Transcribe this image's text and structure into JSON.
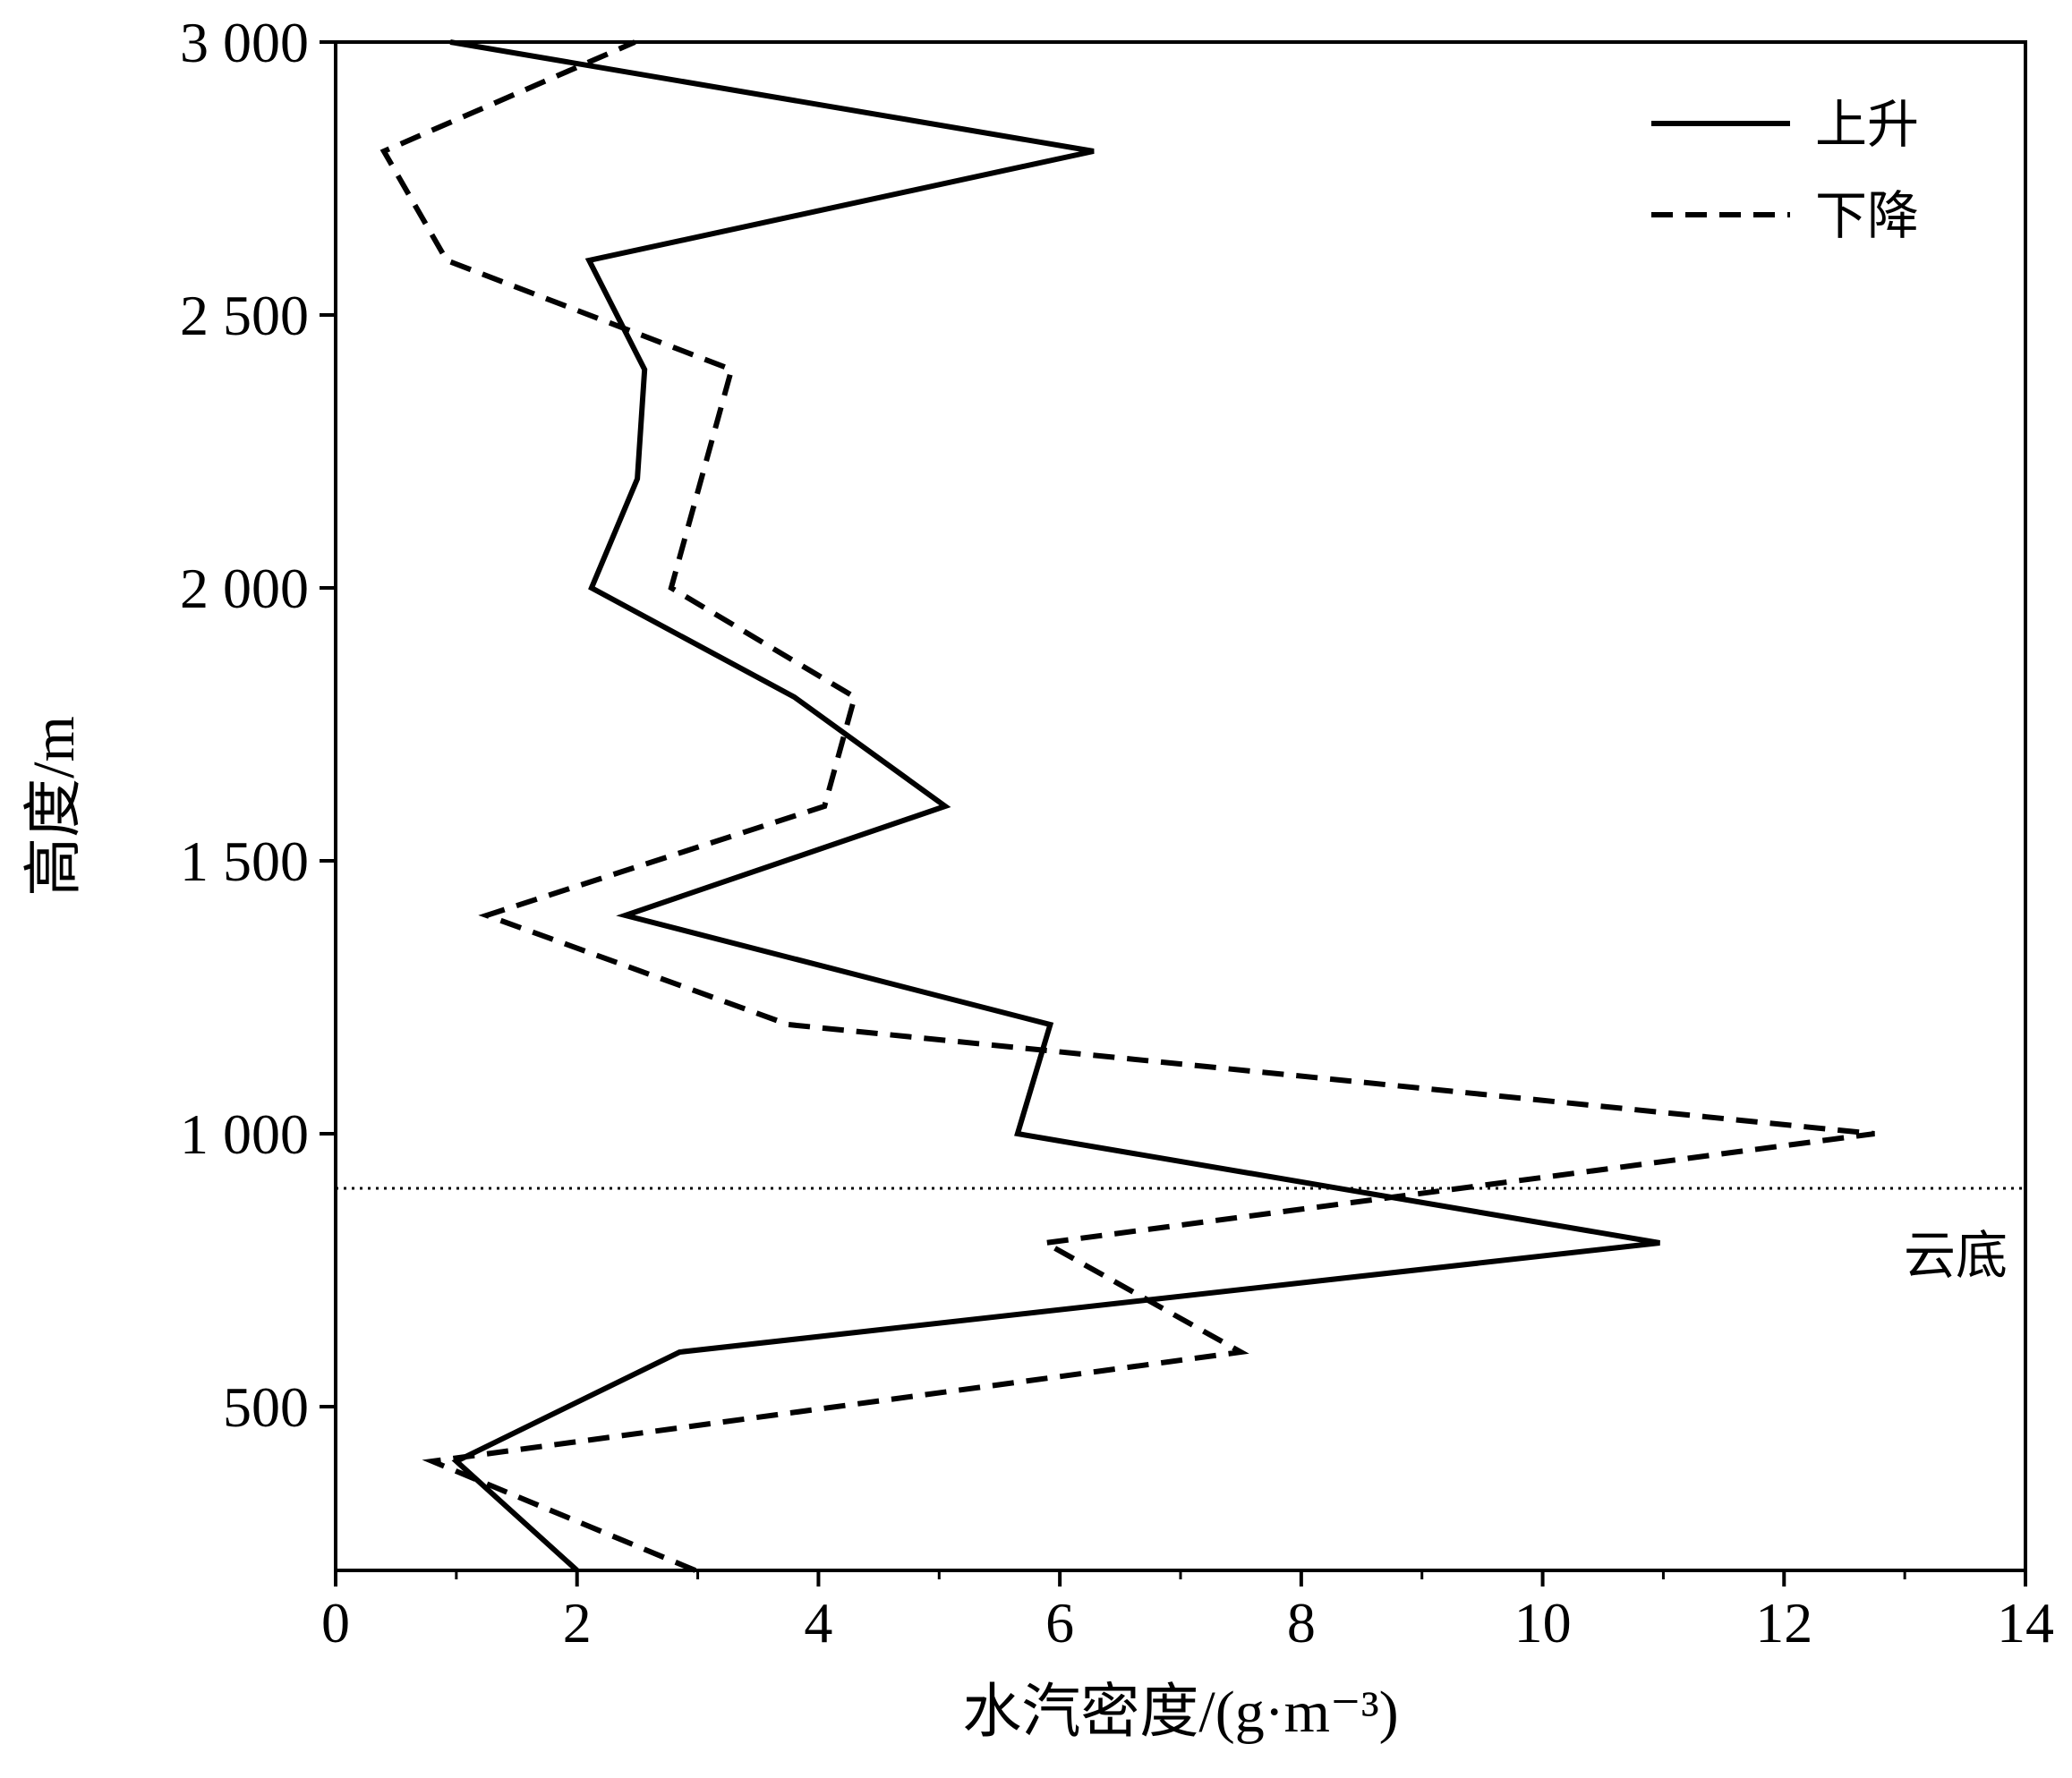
{
  "chart_data": {
    "type": "line",
    "title": "",
    "xlabel": "水汽密度/(g·m⁻³)",
    "ylabel": "高度/m",
    "xlim": [
      0,
      14
    ],
    "ylim": [
      200,
      3000
    ],
    "x_major_ticks": [
      0,
      2,
      4,
      6,
      8,
      10,
      12,
      14
    ],
    "x_tick_labels": [
      "0",
      "2",
      "4",
      "6",
      "8",
      "10",
      "12",
      "14"
    ],
    "x_minor_ticks": [
      1,
      3,
      5,
      7,
      9,
      11,
      13
    ],
    "y_ticks": [
      500,
      1000,
      1500,
      2000,
      2500,
      3000
    ],
    "y_tick_labels": [
      "500",
      "1 000",
      "1 500",
      "2 000",
      "2 500",
      "3 000"
    ],
    "grid": false,
    "legend_position": "top-right",
    "series": [
      {
        "name": "上升",
        "style": "solid",
        "color": "#000000",
        "points": [
          {
            "x": 2.0,
            "y": 200
          },
          {
            "x": 1.0,
            "y": 400
          },
          {
            "x": 2.85,
            "y": 600
          },
          {
            "x": 10.97,
            "y": 800
          },
          {
            "x": 5.65,
            "y": 1000
          },
          {
            "x": 5.92,
            "y": 1200
          },
          {
            "x": 2.4,
            "y": 1400
          },
          {
            "x": 5.05,
            "y": 1600
          },
          {
            "x": 3.8,
            "y": 1800
          },
          {
            "x": 2.12,
            "y": 2000
          },
          {
            "x": 2.5,
            "y": 2200
          },
          {
            "x": 2.56,
            "y": 2400
          },
          {
            "x": 2.1,
            "y": 2600
          },
          {
            "x": 6.28,
            "y": 2800
          },
          {
            "x": 0.95,
            "y": 3000
          }
        ]
      },
      {
        "name": "下降",
        "style": "dashed",
        "color": "#000000",
        "points": [
          {
            "x": 2.98,
            "y": 200
          },
          {
            "x": 0.8,
            "y": 400
          },
          {
            "x": 7.5,
            "y": 600
          },
          {
            "x": 5.88,
            "y": 800
          },
          {
            "x": 12.75,
            "y": 1000
          },
          {
            "x": 3.75,
            "y": 1200
          },
          {
            "x": 1.25,
            "y": 1400
          },
          {
            "x": 4.05,
            "y": 1600
          },
          {
            "x": 4.3,
            "y": 1800
          },
          {
            "x": 2.78,
            "y": 2000
          },
          {
            "x": 3.28,
            "y": 2400
          },
          {
            "x": 0.92,
            "y": 2600
          },
          {
            "x": 0.4,
            "y": 2800
          },
          {
            "x": 2.48,
            "y": 3000
          }
        ]
      }
    ],
    "reference_lines": [
      {
        "orientation": "horizontal",
        "y": 900,
        "style": "dotted",
        "label": "云底"
      }
    ]
  }
}
